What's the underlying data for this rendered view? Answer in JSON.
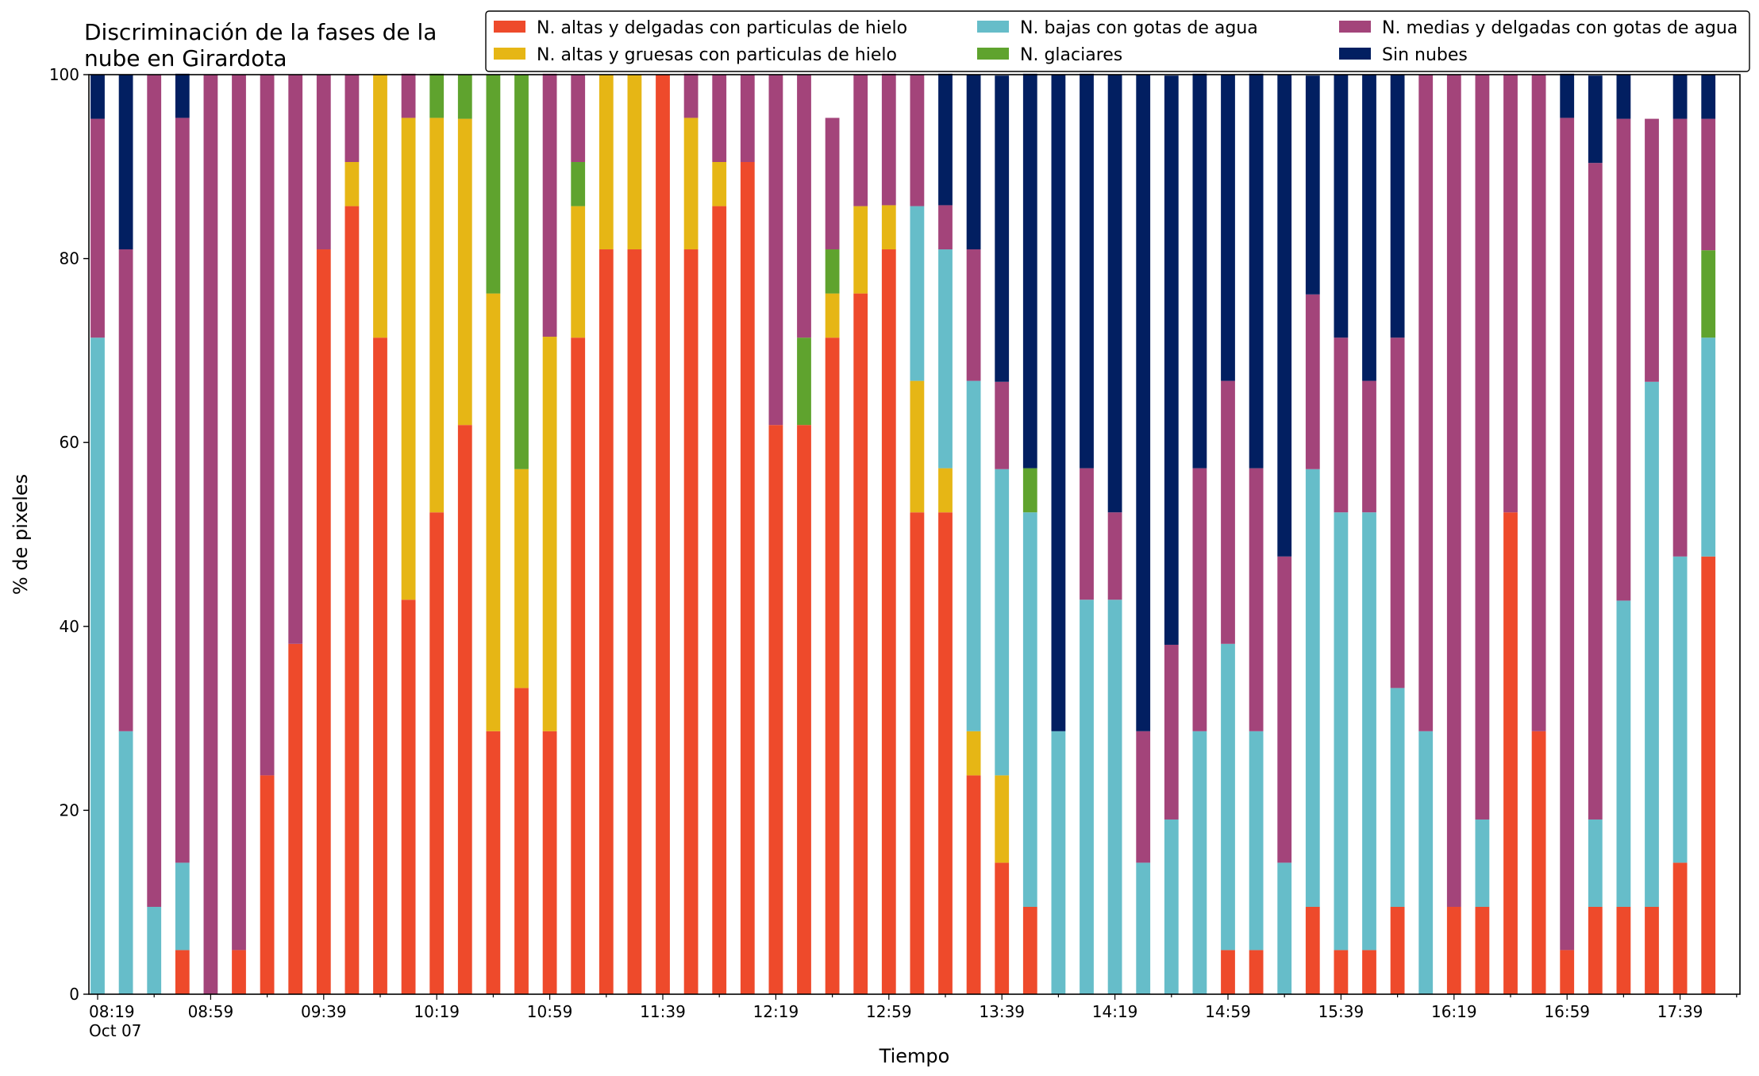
{
  "chart_data": {
    "type": "bar",
    "stacked": true,
    "title_line1": "Discriminación de la fases de la",
    "title_line2": "nube en Girardota",
    "xlabel": "Tiempo",
    "ylabel": "% de pixeles",
    "ylim": [
      0,
      100
    ],
    "yticks": [
      0,
      20,
      40,
      60,
      80,
      100
    ],
    "grid": false,
    "legend_position": "top-right",
    "x_start": "08:19",
    "x_interval_minutes": 10,
    "x_tick_labels": [
      {
        "index": 0,
        "label": "08:19",
        "sublabel": "Oct 07"
      },
      {
        "index": 4,
        "label": "08:59"
      },
      {
        "index": 8,
        "label": "09:39"
      },
      {
        "index": 12,
        "label": "10:19"
      },
      {
        "index": 16,
        "label": "10:59"
      },
      {
        "index": 20,
        "label": "11:39"
      },
      {
        "index": 24,
        "label": "12:19"
      },
      {
        "index": 28,
        "label": "12:59"
      },
      {
        "index": 32,
        "label": "13:39"
      },
      {
        "index": 36,
        "label": "14:19"
      },
      {
        "index": 40,
        "label": "14:59"
      },
      {
        "index": 44,
        "label": "15:39"
      },
      {
        "index": 48,
        "label": "16:19"
      },
      {
        "index": 52,
        "label": "16:59"
      },
      {
        "index": 56,
        "label": "17:39"
      }
    ],
    "series": [
      {
        "name": "N. altas y delgadas con particulas de hielo",
        "color": "#EE4A2B",
        "values": [
          0,
          0,
          0,
          4.8,
          0,
          4.8,
          23.8,
          38.1,
          81.0,
          85.7,
          71.4,
          42.9,
          52.4,
          61.9,
          28.6,
          33.3,
          28.6,
          71.4,
          81.0,
          81.0,
          100,
          81.0,
          85.7,
          90.5,
          61.9,
          61.9,
          71.4,
          76.2,
          81.0,
          52.4,
          52.4,
          23.8,
          14.3,
          9.5,
          0,
          0,
          0,
          0,
          0,
          0,
          4.8,
          4.8,
          0,
          9.5,
          4.8,
          4.8,
          9.5,
          0,
          9.5,
          9.5,
          52.4,
          28.6,
          4.8,
          9.5,
          9.5,
          9.5,
          14.3,
          47.6
        ]
      },
      {
        "name": "N. altas y gruesas con particulas de hielo",
        "color": "#E6B615",
        "values": [
          0,
          0,
          0,
          0,
          0,
          0,
          0,
          0,
          0,
          4.8,
          28.6,
          52.4,
          42.9,
          33.3,
          47.6,
          23.8,
          42.9,
          14.3,
          19.0,
          19.0,
          0,
          14.3,
          4.8,
          0,
          0,
          0,
          4.8,
          9.5,
          4.8,
          14.3,
          4.8,
          4.8,
          9.5,
          0,
          0,
          0,
          0,
          0,
          0,
          0,
          0,
          0,
          0,
          0,
          0,
          0,
          0,
          0,
          0,
          0,
          0,
          0,
          0,
          0,
          0,
          0,
          0,
          0
        ]
      },
      {
        "name": "N. bajas con gotas de agua",
        "color": "#66BDC9",
        "values": [
          71.4,
          28.6,
          9.5,
          9.5,
          0,
          0,
          0,
          0,
          0,
          0,
          0,
          0,
          0,
          0,
          0,
          0,
          0,
          0,
          0,
          0,
          0,
          0,
          0,
          0,
          0,
          0,
          0,
          0,
          0,
          19.0,
          23.8,
          38.1,
          33.3,
          42.9,
          28.6,
          42.9,
          42.9,
          14.3,
          19.0,
          28.6,
          33.3,
          23.8,
          14.3,
          47.6,
          47.6,
          47.6,
          23.8,
          28.6,
          0,
          9.5,
          0,
          0,
          0,
          9.5,
          33.3,
          57.1,
          33.3,
          23.8
        ]
      },
      {
        "name": "N. glaciares",
        "color": "#5FA32E",
        "values": [
          0,
          0,
          0,
          0,
          0,
          0,
          0,
          0,
          0,
          0,
          0,
          0,
          4.8,
          4.8,
          23.8,
          42.9,
          0,
          4.8,
          0,
          0,
          0,
          0,
          0,
          0,
          0,
          9.5,
          4.8,
          0,
          0,
          0,
          0,
          0,
          0,
          4.8,
          0,
          0,
          0,
          0,
          0,
          0,
          0,
          0,
          0,
          0,
          0,
          0,
          0,
          0,
          0,
          0,
          0,
          0,
          0,
          0,
          0,
          0,
          0,
          9.5
        ]
      },
      {
        "name": "N. medias y delgadas con gotas de agua",
        "color": "#A3447A",
        "values": [
          23.8,
          52.4,
          90.5,
          81.0,
          100,
          95.2,
          76.2,
          61.9,
          19.0,
          9.5,
          0,
          4.8,
          0,
          0,
          0,
          0,
          28.6,
          9.5,
          0,
          0,
          0,
          4.8,
          9.5,
          9.5,
          38.1,
          28.6,
          14.3,
          14.3,
          14.3,
          14.3,
          4.8,
          14.3,
          9.5,
          0,
          0,
          14.3,
          9.5,
          14.3,
          19.0,
          28.6,
          28.6,
          28.6,
          33.3,
          19.0,
          19.0,
          14.3,
          38.1,
          71.4,
          90.5,
          81.0,
          47.6,
          71.4,
          90.5,
          71.4,
          52.4,
          28.6,
          47.6,
          14.3
        ]
      },
      {
        "name": "Sin nubes",
        "color": "#021F61",
        "values": [
          4.8,
          19.0,
          0,
          4.8,
          0,
          0,
          0,
          0,
          0,
          0,
          0,
          0,
          0,
          0,
          0,
          0,
          0,
          0,
          0,
          0,
          0,
          0,
          0,
          0,
          0,
          0,
          0,
          0,
          0,
          0,
          14.3,
          19.0,
          33.3,
          42.9,
          71.4,
          42.9,
          47.6,
          71.4,
          61.9,
          42.9,
          33.3,
          42.9,
          52.4,
          23.8,
          28.6,
          33.3,
          28.6,
          0,
          0,
          0,
          0,
          0,
          4.8,
          9.5,
          4.8,
          0,
          4.8,
          4.8
        ]
      }
    ]
  }
}
